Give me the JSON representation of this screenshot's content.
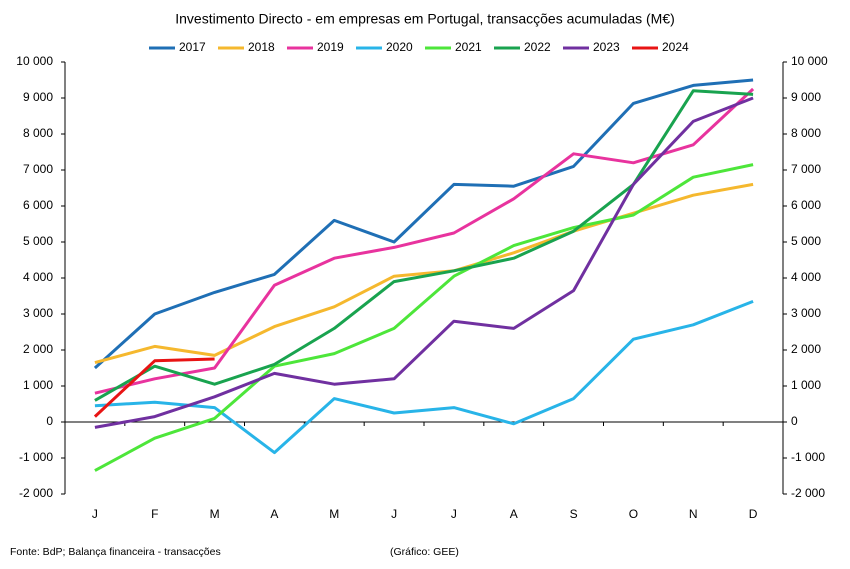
{
  "chart_data": {
    "type": "line",
    "title": "Investimento  Directo - em empresas em Portugal,  transacções acumuladas  (M€)",
    "categories": [
      "J",
      "F",
      "M",
      "A",
      "M",
      "J",
      "J",
      "A",
      "S",
      "O",
      "N",
      "D"
    ],
    "series": [
      {
        "name": "2017",
        "color": "#1f6fb5",
        "values": [
          1500,
          3000,
          3600,
          4100,
          5600,
          5000,
          6600,
          6550,
          7100,
          8850,
          9350,
          9500
        ]
      },
      {
        "name": "2018",
        "color": "#f5b82e",
        "values": [
          1650,
          2100,
          1850,
          2650,
          3200,
          4050,
          4200,
          4700,
          5300,
          5800,
          6300,
          6600
        ]
      },
      {
        "name": "2019",
        "color": "#e8339e",
        "values": [
          800,
          1200,
          1500,
          3800,
          4550,
          4850,
          5250,
          6200,
          7450,
          7200,
          7700,
          9250
        ]
      },
      {
        "name": "2020",
        "color": "#28b4e8",
        "values": [
          450,
          550,
          400,
          -850,
          650,
          250,
          400,
          -50,
          650,
          2300,
          2700,
          3350
        ]
      },
      {
        "name": "2021",
        "color": "#4de63a",
        "values": [
          -1350,
          -450,
          100,
          1550,
          1900,
          2600,
          4050,
          4900,
          5400,
          5750,
          6800,
          7150
        ]
      },
      {
        "name": "2022",
        "color": "#19a34f",
        "values": [
          600,
          1550,
          1050,
          1600,
          2600,
          3900,
          4200,
          4550,
          5300,
          6600,
          9200,
          9100
        ]
      },
      {
        "name": "2023",
        "color": "#7030a0",
        "values": [
          -150,
          150,
          700,
          1350,
          1050,
          1200,
          2800,
          2600,
          3650,
          6600,
          8350,
          9000
        ]
      },
      {
        "name": "2024",
        "color": "#e81414",
        "values": [
          150,
          1700,
          1750,
          null,
          null,
          null,
          null,
          null,
          null,
          null,
          null,
          null
        ]
      }
    ],
    "ylim": [
      -2000,
      10000
    ],
    "yticks": [
      {
        "value": -2000,
        "label": "-2 000"
      },
      {
        "value": -1000,
        "label": "-1 000"
      },
      0,
      {
        "value": 1000,
        "label": "1 000"
      },
      {
        "value": 2000,
        "label": "2 000"
      },
      {
        "value": 3000,
        "label": "3 000"
      },
      {
        "value": 4000,
        "label": "4 000"
      },
      {
        "value": 5000,
        "label": "5 000"
      },
      {
        "value": 6000,
        "label": "6 000"
      },
      {
        "value": 7000,
        "label": "7 000"
      },
      {
        "value": 8000,
        "label": "8 000"
      },
      {
        "value": 9000,
        "label": "9 000"
      },
      {
        "value": 10000,
        "label": "10 000"
      }
    ],
    "y2lim": [
      -2000,
      10000
    ],
    "y2ticks": [
      {
        "value": -2000,
        "label": "-2 000"
      },
      {
        "value": -1000,
        "label": "-1 000"
      },
      0,
      {
        "value": 1000,
        "label": "1 000"
      },
      {
        "value": 2000,
        "label": "2 000"
      },
      {
        "value": 3000,
        "label": "3 000"
      },
      {
        "value": 4000,
        "label": "4 000"
      },
      {
        "value": 5000,
        "label": "5 000"
      },
      {
        "value": 6000,
        "label": "6 000"
      },
      {
        "value": 7000,
        "label": "7 000"
      },
      {
        "value": 8000,
        "label": "8 000"
      },
      {
        "value": 9000,
        "label": "9 000"
      },
      {
        "value": 10000,
        "label": "10 000"
      }
    ],
    "grid": false,
    "legend": "top",
    "source": "Fonte: BdP; Balança financeira - transacções",
    "note": "(Gráfico: GEE)"
  }
}
